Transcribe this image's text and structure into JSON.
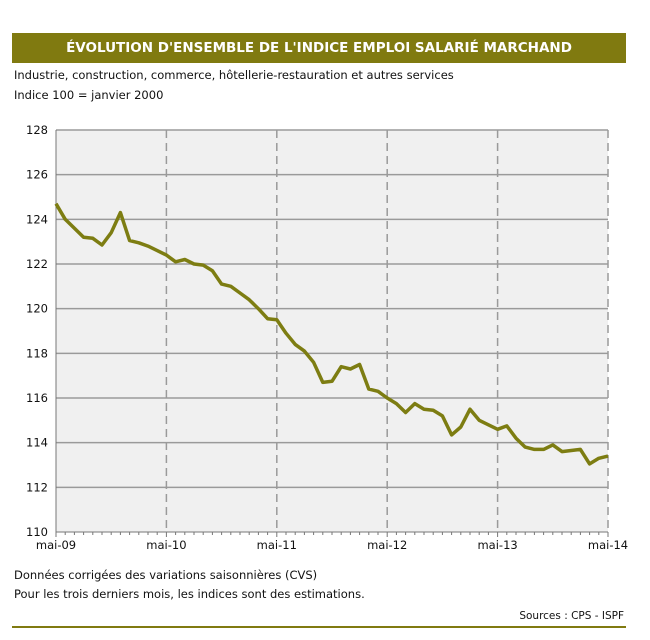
{
  "title": "ÉVOLUTION D'ENSEMBLE DE L'INDICE EMPLOI SALARIÉ MARCHAND",
  "subtitle": "Industrie, construction, commerce, hôtellerie-restauration et autres services",
  "base_note": "Indice 100 = janvier 2000",
  "footnotes": [
    "Données corrigées des variations saisonnières (CVS)",
    "Pour les trois derniers mois, les indices sont des estimations."
  ],
  "source": "Sources : CPS - ISPF",
  "colors": {
    "accent": "#807a10",
    "line": "#7d7d12",
    "plot_bg": "#f0f0f0"
  },
  "chart_data": {
    "type": "line",
    "frequency": "monthly",
    "x_start": "mai-09",
    "x_end": "mai-14",
    "x_tick_labels": [
      "mai-09",
      "mai-10",
      "mai-11",
      "mai-12",
      "mai-13",
      "mai-14"
    ],
    "y_tick_labels": [
      "110",
      "112",
      "114",
      "116",
      "118",
      "120",
      "122",
      "124",
      "126",
      "128"
    ],
    "ylim": [
      110,
      128
    ],
    "grid": true,
    "series": [
      {
        "values": [
          124.7,
          124.0,
          123.6,
          123.2,
          123.15,
          122.85,
          123.4,
          124.3,
          123.05,
          122.95,
          122.8,
          122.6,
          122.4,
          122.1,
          122.2,
          122.0,
          121.95,
          121.7,
          121.1,
          121.0,
          120.7,
          120.4,
          120.0,
          119.55,
          119.5,
          118.9,
          118.4,
          118.1,
          117.6,
          116.7,
          116.75,
          117.4,
          117.3,
          117.5,
          116.4,
          116.3,
          116.0,
          115.75,
          115.35,
          115.75,
          115.5,
          115.45,
          115.2,
          114.35,
          114.7,
          115.5,
          115.0,
          114.8,
          114.6,
          114.75,
          114.2,
          113.8,
          113.7,
          113.7,
          113.9,
          113.6,
          113.65,
          113.7,
          113.05,
          113.3,
          113.4
        ]
      }
    ]
  }
}
